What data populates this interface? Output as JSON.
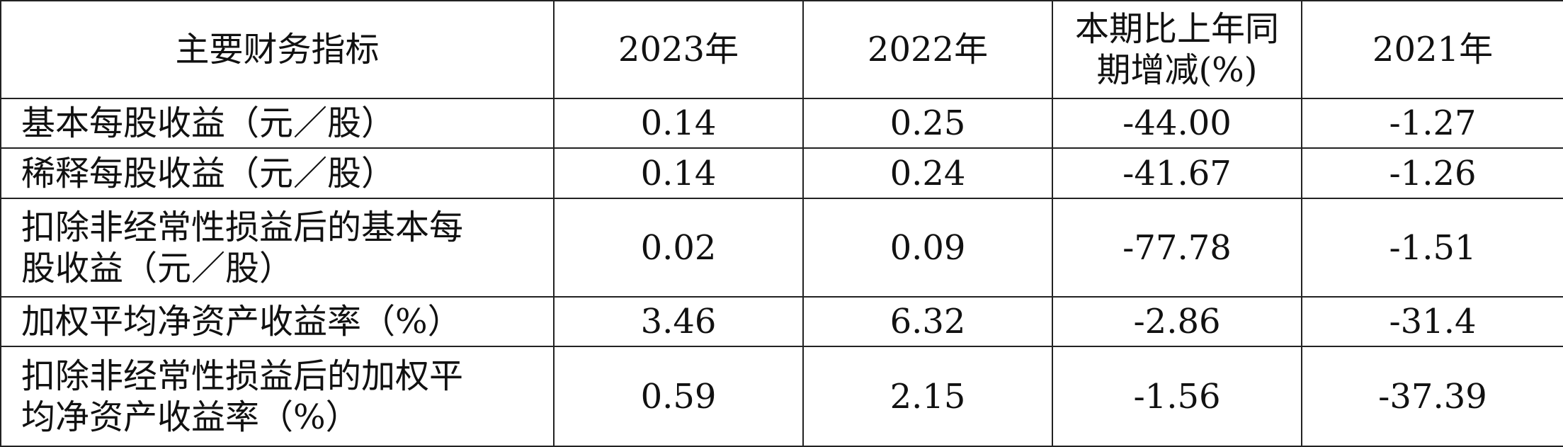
{
  "table": {
    "header": [
      "主要财务指标",
      "2023年",
      "2022年",
      "本期比上年同期增减(%)",
      "2021年"
    ],
    "rows": [
      [
        "基本每股收益（元／股）",
        "0.14",
        "0.25",
        "-44.00",
        "-1.27"
      ],
      [
        "稀释每股收益（元／股）",
        "0.14",
        "0.24",
        "-41.67",
        "-1.26"
      ],
      [
        "扣除非经常性损益后的基本每股收益（元／股）",
        "0.02",
        "0.09",
        "-77.78",
        "-1.51"
      ],
      [
        "加权平均净资产收益率（%）",
        "3.46",
        "6.32",
        "-2.86",
        "-31.4"
      ],
      [
        "扣除非经常性损益后的加权平均净资产收益率（%）",
        "0.59",
        "2.15",
        "-1.56",
        "-37.39"
      ]
    ]
  }
}
